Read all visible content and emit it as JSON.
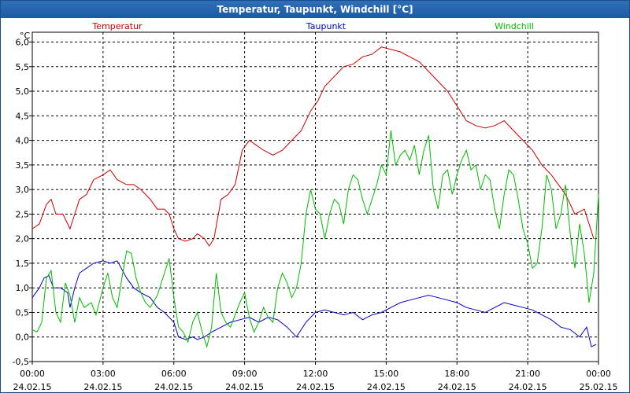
{
  "window": {
    "title": "Temperatur, Taupunkt, Windchill [°C]"
  },
  "chart_data": {
    "type": "line",
    "title": "Temperatur, Taupunkt, Windchill [°C]",
    "ylabel": "°C",
    "ylim": [
      -0.5,
      6.2
    ],
    "xlim": [
      0,
      24
    ],
    "y_ticks": [
      -0.5,
      0,
      0.5,
      1,
      1.5,
      2,
      2.5,
      3,
      3.5,
      4,
      4.5,
      5,
      5.5,
      6
    ],
    "y_tick_labels": [
      "-0,5",
      "0,0",
      "0,5",
      "1,0",
      "1,5",
      "2,0",
      "2,5",
      "3,0",
      "3,5",
      "4,0",
      "4,5",
      "5,0",
      "5,5",
      "6,0"
    ],
    "x_ticks": [
      0,
      3,
      6,
      9,
      12,
      15,
      18,
      21,
      24
    ],
    "x_tick_time": [
      "00:00",
      "03:00",
      "06:00",
      "09:00",
      "12:00",
      "15:00",
      "18:00",
      "21:00",
      "00:00"
    ],
    "x_tick_date": [
      "24.02.15",
      "24.02.15",
      "24.02.15",
      "24.02.15",
      "24.02.15",
      "24.02.15",
      "24.02.15",
      "24.02.15",
      "25.02.15"
    ],
    "grid": true,
    "series": [
      {
        "name": "Temperatur",
        "color": "#cc0000",
        "points": [
          [
            0,
            2.2
          ],
          [
            0.3,
            2.3
          ],
          [
            0.6,
            2.7
          ],
          [
            0.8,
            2.8
          ],
          [
            1.0,
            2.5
          ],
          [
            1.3,
            2.5
          ],
          [
            1.5,
            2.3
          ],
          [
            1.6,
            2.2
          ],
          [
            1.8,
            2.5
          ],
          [
            2.0,
            2.8
          ],
          [
            2.3,
            2.9
          ],
          [
            2.6,
            3.2
          ],
          [
            3.0,
            3.3
          ],
          [
            3.3,
            3.4
          ],
          [
            3.6,
            3.2
          ],
          [
            4.0,
            3.1
          ],
          [
            4.3,
            3.1
          ],
          [
            4.6,
            3.0
          ],
          [
            5.0,
            2.8
          ],
          [
            5.3,
            2.6
          ],
          [
            5.6,
            2.6
          ],
          [
            5.8,
            2.5
          ],
          [
            6.0,
            2.2
          ],
          [
            6.2,
            2.0
          ],
          [
            6.5,
            1.95
          ],
          [
            6.8,
            2.0
          ],
          [
            7.0,
            2.1
          ],
          [
            7.3,
            2.0
          ],
          [
            7.5,
            1.85
          ],
          [
            7.7,
            2.0
          ],
          [
            8.0,
            2.8
          ],
          [
            8.3,
            2.9
          ],
          [
            8.6,
            3.1
          ],
          [
            8.9,
            3.8
          ],
          [
            9.2,
            4.0
          ],
          [
            9.5,
            3.9
          ],
          [
            9.8,
            3.8
          ],
          [
            10.2,
            3.7
          ],
          [
            10.6,
            3.8
          ],
          [
            11.0,
            4.0
          ],
          [
            11.4,
            4.2
          ],
          [
            11.8,
            4.6
          ],
          [
            12.1,
            4.8
          ],
          [
            12.4,
            5.1
          ],
          [
            12.8,
            5.3
          ],
          [
            13.2,
            5.5
          ],
          [
            13.6,
            5.55
          ],
          [
            14.0,
            5.7
          ],
          [
            14.4,
            5.75
          ],
          [
            14.8,
            5.9
          ],
          [
            15.2,
            5.85
          ],
          [
            15.6,
            5.8
          ],
          [
            16.0,
            5.7
          ],
          [
            16.4,
            5.6
          ],
          [
            16.8,
            5.4
          ],
          [
            17.2,
            5.2
          ],
          [
            17.6,
            5.0
          ],
          [
            18.0,
            4.7
          ],
          [
            18.4,
            4.4
          ],
          [
            18.8,
            4.3
          ],
          [
            19.2,
            4.25
          ],
          [
            19.6,
            4.3
          ],
          [
            20.0,
            4.4
          ],
          [
            20.4,
            4.2
          ],
          [
            20.8,
            4.0
          ],
          [
            21.2,
            3.8
          ],
          [
            21.6,
            3.5
          ],
          [
            22.0,
            3.3
          ],
          [
            22.3,
            3.1
          ],
          [
            22.6,
            2.9
          ],
          [
            23.0,
            2.5
          ],
          [
            23.4,
            2.6
          ],
          [
            23.8,
            2.0
          ]
        ]
      },
      {
        "name": "Taupunkt",
        "color": "#0000cc",
        "points": [
          [
            0,
            0.8
          ],
          [
            0.3,
            1.0
          ],
          [
            0.5,
            1.2
          ],
          [
            0.7,
            1.25
          ],
          [
            0.9,
            1.0
          ],
          [
            1.2,
            1.0
          ],
          [
            1.5,
            0.9
          ],
          [
            1.6,
            0.6
          ],
          [
            1.8,
            1.0
          ],
          [
            2.0,
            1.3
          ],
          [
            2.3,
            1.4
          ],
          [
            2.6,
            1.5
          ],
          [
            3.0,
            1.55
          ],
          [
            3.3,
            1.5
          ],
          [
            3.6,
            1.55
          ],
          [
            4.0,
            1.2
          ],
          [
            4.3,
            1.0
          ],
          [
            4.6,
            0.9
          ],
          [
            5.0,
            0.8
          ],
          [
            5.3,
            0.6
          ],
          [
            5.6,
            0.5
          ],
          [
            6.0,
            0.3
          ],
          [
            6.2,
            0.0
          ],
          [
            6.5,
            -0.05
          ],
          [
            6.8,
            0.0
          ],
          [
            7.0,
            -0.05
          ],
          [
            7.3,
            0.0
          ],
          [
            7.6,
            0.1
          ],
          [
            8.0,
            0.2
          ],
          [
            8.4,
            0.3
          ],
          [
            8.8,
            0.35
          ],
          [
            9.2,
            0.4
          ],
          [
            9.6,
            0.3
          ],
          [
            10.0,
            0.4
          ],
          [
            10.4,
            0.35
          ],
          [
            10.8,
            0.2
          ],
          [
            11.2,
            0.0
          ],
          [
            11.6,
            0.3
          ],
          [
            12.0,
            0.5
          ],
          [
            12.4,
            0.55
          ],
          [
            12.8,
            0.5
          ],
          [
            13.2,
            0.45
          ],
          [
            13.6,
            0.5
          ],
          [
            14.0,
            0.35
          ],
          [
            14.4,
            0.45
          ],
          [
            14.8,
            0.5
          ],
          [
            15.2,
            0.6
          ],
          [
            15.6,
            0.7
          ],
          [
            16.0,
            0.75
          ],
          [
            16.4,
            0.8
          ],
          [
            16.8,
            0.85
          ],
          [
            17.2,
            0.8
          ],
          [
            17.6,
            0.75
          ],
          [
            18.0,
            0.7
          ],
          [
            18.4,
            0.6
          ],
          [
            18.8,
            0.55
          ],
          [
            19.2,
            0.5
          ],
          [
            19.6,
            0.6
          ],
          [
            20.0,
            0.7
          ],
          [
            20.4,
            0.65
          ],
          [
            20.8,
            0.6
          ],
          [
            21.2,
            0.55
          ],
          [
            21.6,
            0.45
          ],
          [
            22.0,
            0.35
          ],
          [
            22.4,
            0.2
          ],
          [
            22.8,
            0.15
          ],
          [
            23.2,
            0.0
          ],
          [
            23.5,
            0.2
          ],
          [
            23.7,
            -0.2
          ],
          [
            23.9,
            -0.15
          ]
        ]
      },
      {
        "name": "Windchill",
        "color": "#00bb00",
        "points": [
          [
            0,
            0.15
          ],
          [
            0.2,
            0.1
          ],
          [
            0.4,
            0.3
          ],
          [
            0.6,
            1.2
          ],
          [
            0.8,
            1.35
          ],
          [
            1.0,
            0.5
          ],
          [
            1.2,
            0.3
          ],
          [
            1.4,
            1.1
          ],
          [
            1.6,
            0.85
          ],
          [
            1.8,
            0.3
          ],
          [
            2.0,
            0.8
          ],
          [
            2.2,
            0.6
          ],
          [
            2.5,
            0.7
          ],
          [
            2.7,
            0.45
          ],
          [
            3.0,
            1.0
          ],
          [
            3.2,
            1.3
          ],
          [
            3.4,
            0.8
          ],
          [
            3.6,
            0.6
          ],
          [
            3.8,
            1.2
          ],
          [
            4.0,
            1.75
          ],
          [
            4.2,
            1.7
          ],
          [
            4.4,
            1.2
          ],
          [
            4.6,
            0.9
          ],
          [
            4.8,
            0.7
          ],
          [
            5.0,
            0.6
          ],
          [
            5.3,
            0.85
          ],
          [
            5.6,
            1.3
          ],
          [
            5.8,
            1.6
          ],
          [
            6.0,
            0.8
          ],
          [
            6.2,
            0.2
          ],
          [
            6.4,
            0.1
          ],
          [
            6.6,
            -0.1
          ],
          [
            6.8,
            0.3
          ],
          [
            7.0,
            0.5
          ],
          [
            7.2,
            0.1
          ],
          [
            7.4,
            -0.2
          ],
          [
            7.6,
            0.2
          ],
          [
            7.8,
            1.3
          ],
          [
            8.0,
            0.5
          ],
          [
            8.2,
            0.3
          ],
          [
            8.4,
            0.2
          ],
          [
            8.6,
            0.45
          ],
          [
            8.8,
            0.7
          ],
          [
            9.0,
            0.9
          ],
          [
            9.2,
            0.4
          ],
          [
            9.4,
            0.1
          ],
          [
            9.6,
            0.3
          ],
          [
            9.8,
            0.6
          ],
          [
            10.0,
            0.4
          ],
          [
            10.2,
            0.3
          ],
          [
            10.4,
            1.0
          ],
          [
            10.6,
            1.3
          ],
          [
            10.8,
            1.1
          ],
          [
            11.0,
            0.8
          ],
          [
            11.2,
            1.0
          ],
          [
            11.4,
            1.5
          ],
          [
            11.6,
            2.5
          ],
          [
            11.8,
            3.0
          ],
          [
            12.0,
            2.6
          ],
          [
            12.2,
            2.5
          ],
          [
            12.4,
            2.0
          ],
          [
            12.6,
            2.5
          ],
          [
            12.8,
            2.8
          ],
          [
            13.0,
            2.7
          ],
          [
            13.2,
            2.3
          ],
          [
            13.4,
            3.0
          ],
          [
            13.6,
            3.3
          ],
          [
            13.8,
            3.2
          ],
          [
            14.0,
            2.8
          ],
          [
            14.2,
            2.5
          ],
          [
            14.4,
            2.8
          ],
          [
            14.6,
            3.1
          ],
          [
            14.8,
            3.5
          ],
          [
            15.0,
            3.3
          ],
          [
            15.2,
            4.2
          ],
          [
            15.4,
            3.5
          ],
          [
            15.6,
            3.7
          ],
          [
            15.8,
            3.8
          ],
          [
            16.0,
            3.6
          ],
          [
            16.2,
            3.9
          ],
          [
            16.4,
            3.3
          ],
          [
            16.6,
            3.8
          ],
          [
            16.8,
            4.1
          ],
          [
            17.0,
            3.0
          ],
          [
            17.2,
            2.6
          ],
          [
            17.4,
            3.3
          ],
          [
            17.6,
            3.4
          ],
          [
            17.8,
            2.9
          ],
          [
            18.0,
            3.3
          ],
          [
            18.2,
            3.6
          ],
          [
            18.4,
            3.8
          ],
          [
            18.6,
            3.4
          ],
          [
            18.8,
            3.5
          ],
          [
            19.0,
            3.0
          ],
          [
            19.2,
            3.3
          ],
          [
            19.4,
            3.2
          ],
          [
            19.6,
            2.6
          ],
          [
            19.8,
            2.2
          ],
          [
            20.0,
            2.9
          ],
          [
            20.2,
            3.4
          ],
          [
            20.4,
            3.3
          ],
          [
            20.6,
            2.8
          ],
          [
            20.8,
            2.2
          ],
          [
            21.0,
            1.9
          ],
          [
            21.2,
            1.4
          ],
          [
            21.4,
            1.5
          ],
          [
            21.6,
            2.2
          ],
          [
            21.8,
            3.3
          ],
          [
            22.0,
            3.0
          ],
          [
            22.2,
            2.2
          ],
          [
            22.4,
            2.5
          ],
          [
            22.6,
            3.1
          ],
          [
            22.8,
            2.1
          ],
          [
            23.0,
            1.4
          ],
          [
            23.2,
            2.3
          ],
          [
            23.4,
            1.7
          ],
          [
            23.6,
            0.7
          ],
          [
            23.8,
            1.3
          ],
          [
            24.0,
            2.9
          ]
        ]
      }
    ]
  }
}
